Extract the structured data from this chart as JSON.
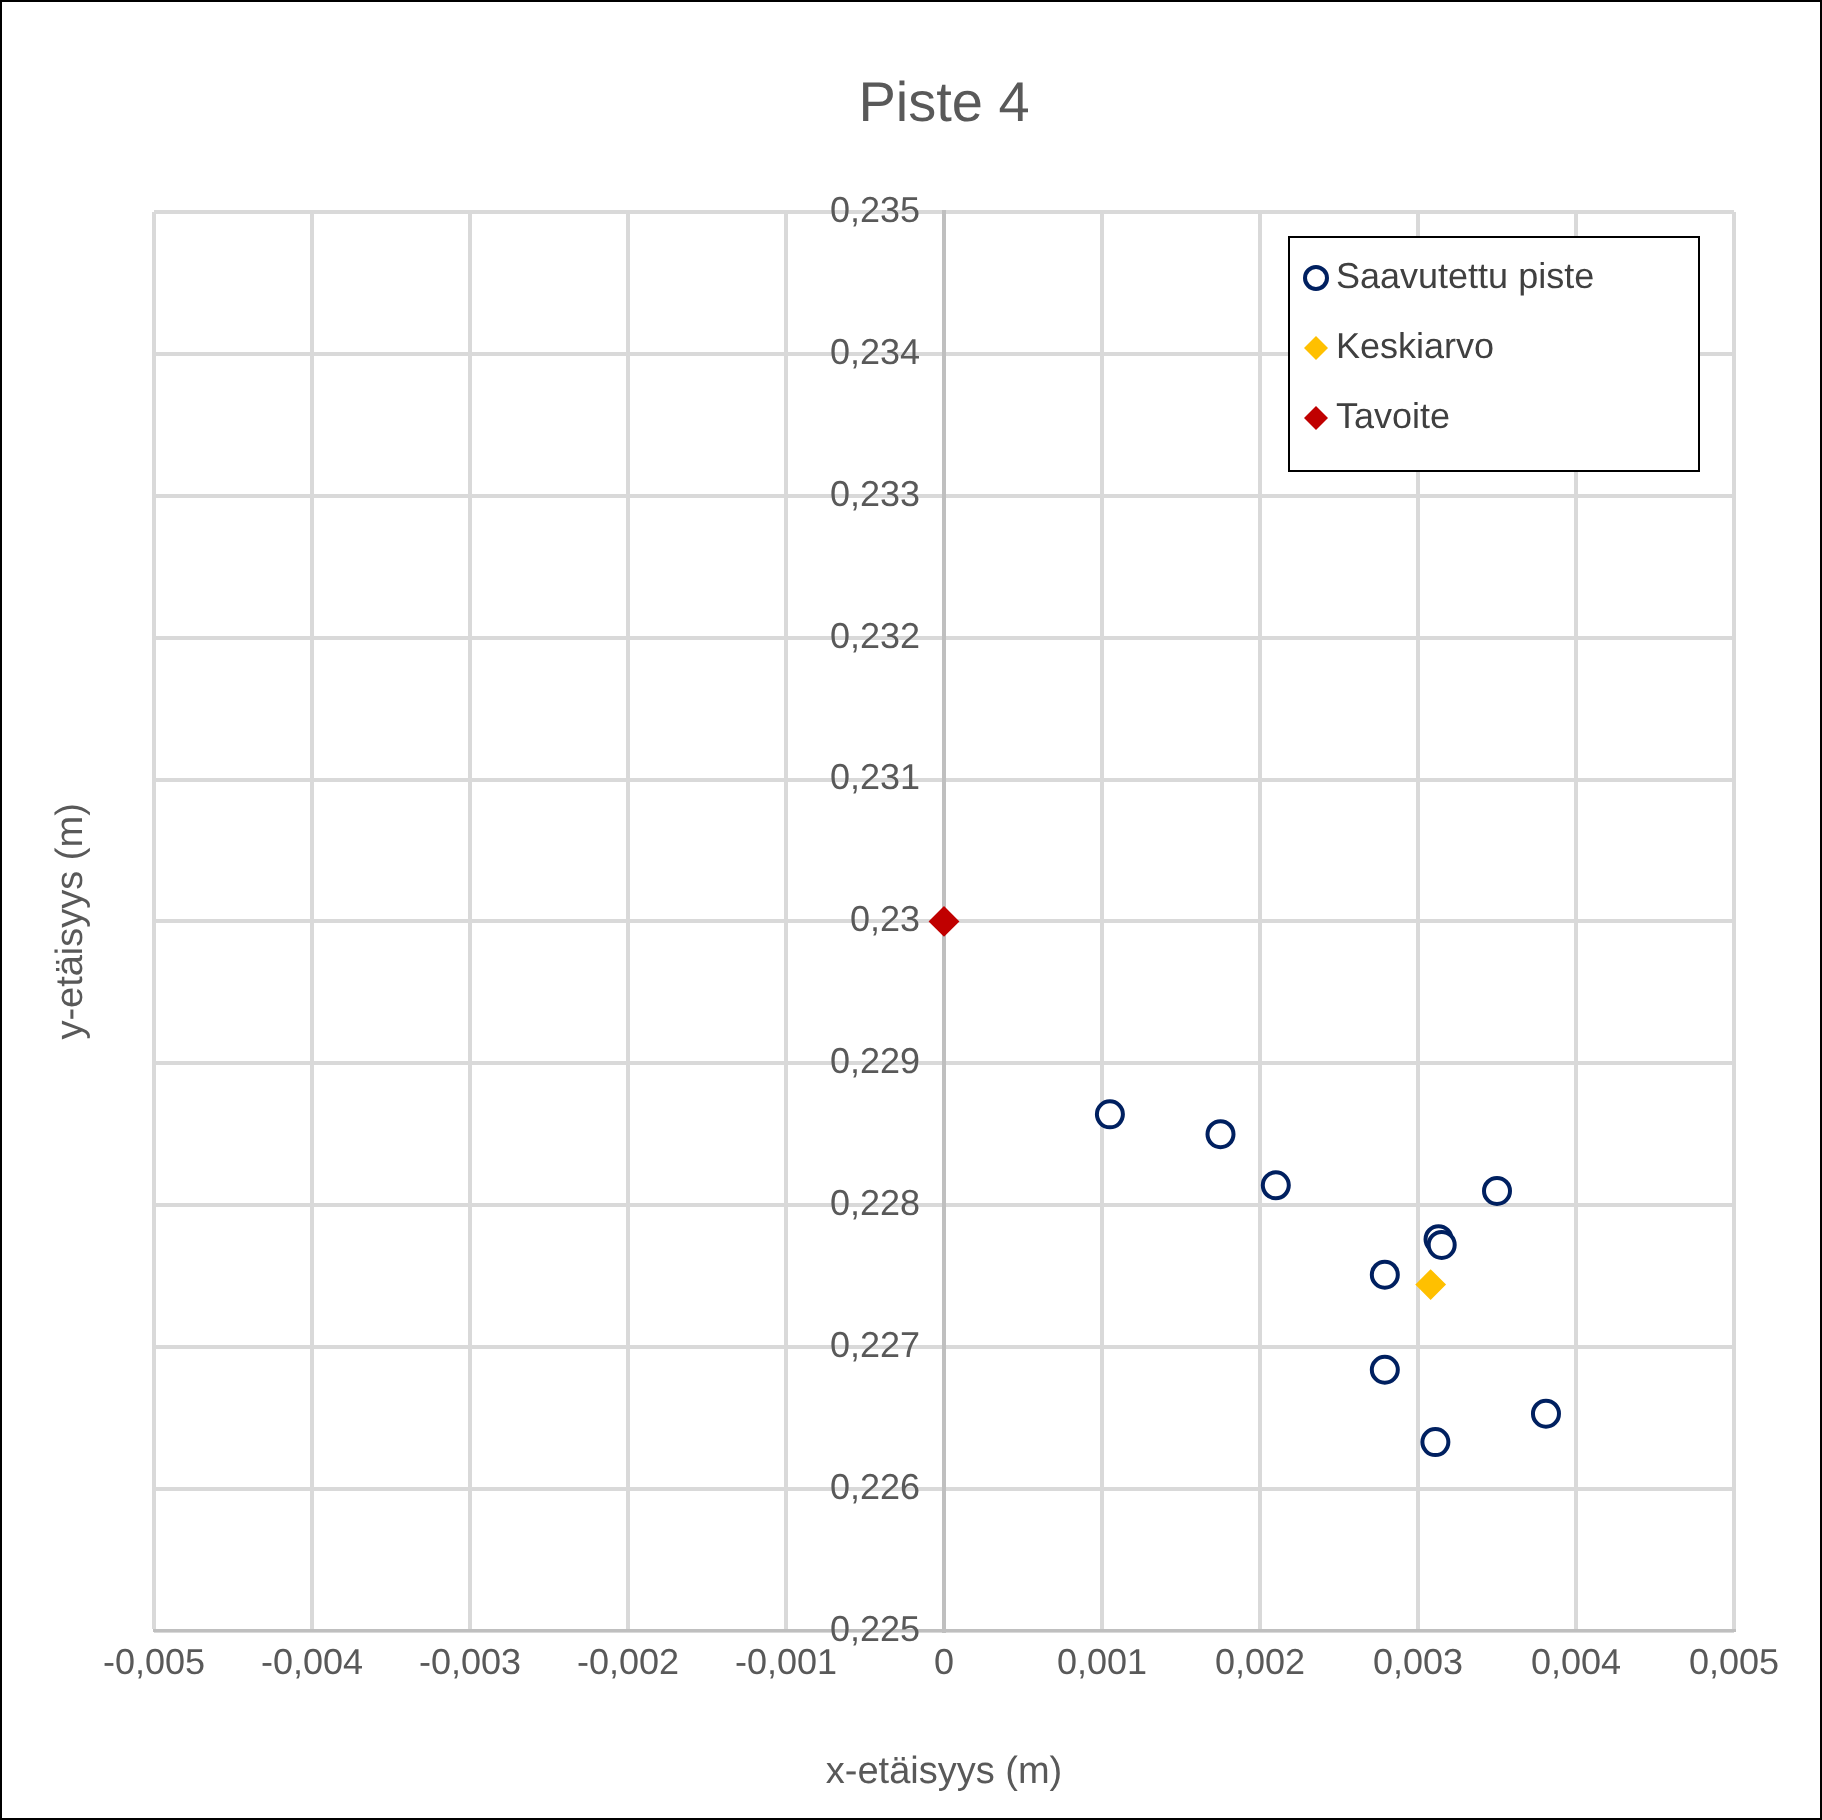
{
  "chart_data": {
    "type": "scatter",
    "title": "Piste 4",
    "xlabel": "x-etäisyys (m)",
    "ylabel": "y-etäisyys (m)",
    "xlim": [
      -0.005,
      0.005
    ],
    "ylim": [
      0.225,
      0.235
    ],
    "xticks": [
      {
        "value": -0.005,
        "label": "-0,005"
      },
      {
        "value": -0.004,
        "label": "-0,004"
      },
      {
        "value": -0.003,
        "label": "-0,003"
      },
      {
        "value": -0.002,
        "label": "-0,002"
      },
      {
        "value": -0.001,
        "label": "-0,001"
      },
      0,
      {
        "value": 0.001,
        "label": "0,001"
      },
      {
        "value": 0.002,
        "label": "0,002"
      },
      {
        "value": 0.003,
        "label": "0,003"
      },
      {
        "value": 0.004,
        "label": "0,004"
      },
      {
        "value": 0.005,
        "label": "0,005"
      }
    ],
    "yticks": [
      {
        "value": 0.225,
        "label": "0,225"
      },
      {
        "value": 0.226,
        "label": "0,226"
      },
      {
        "value": 0.227,
        "label": "0,227"
      },
      {
        "value": 0.228,
        "label": "0,228"
      },
      {
        "value": 0.229,
        "label": "0,229"
      },
      {
        "value": 0.23,
        "label": "0,23"
      },
      {
        "value": 0.231,
        "label": "0,231"
      },
      {
        "value": 0.232,
        "label": "0,232"
      },
      {
        "value": 0.233,
        "label": "0,233"
      },
      {
        "value": 0.234,
        "label": "0,234"
      },
      {
        "value": 0.235,
        "label": "0,235"
      }
    ],
    "grid": true,
    "legend": "top right",
    "series": [
      {
        "name": "Saavutettu piste",
        "color": "#002060",
        "marker": "circle",
        "x": [
          0.00105,
          0.00175,
          0.0021,
          0.0035,
          0.00313,
          0.00315,
          0.00279,
          0.00279,
          0.00381,
          0.00311
        ],
        "values": [
          0.22864,
          0.2285,
          0.22814,
          0.2281,
          0.22776,
          0.22772,
          0.22751,
          0.22684,
          0.22653,
          0.22633
        ]
      },
      {
        "name": "Keskiarvo",
        "color": "#ffc000",
        "marker": "diamond",
        "x": [
          0.00308
        ],
        "values": [
          0.22744
        ]
      },
      {
        "name": "Tavoite",
        "color": "#c00000",
        "marker": "diamond",
        "x": [
          0
        ],
        "values": [
          0.23
        ]
      }
    ]
  }
}
